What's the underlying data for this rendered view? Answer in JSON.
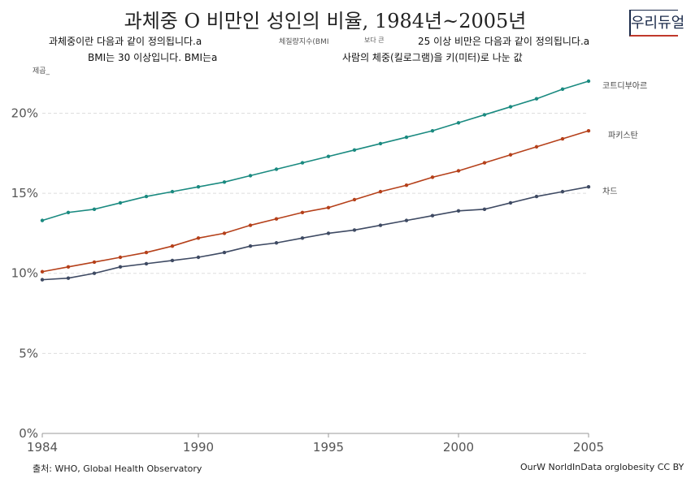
{
  "header": {
    "title": "과체중 O 비만인 성인의 비율, 1984년~2005년",
    "subtitle_1a": "과체중이란 다음과 같이 정의됩니다.a",
    "subtitle_1b": "체질량지수(BMI",
    "subtitle_1c": "보다 큰",
    "subtitle_1d": "25 이상 비만은 다음과 같이 정의됩니다.a",
    "subtitle_2a": "BMI는 30 이상입니다. BMI는a",
    "subtitle_2b": "사람의 체중(킬로그램)을 키(미터)로 나눈 값",
    "subtitle_3": "제곱_"
  },
  "logo": {
    "text": "우리듀얼"
  },
  "footer": {
    "source": "출처: WHO, Global Health Observatory",
    "credit": "OurW NorldInData orglobesity CC BY"
  },
  "chart_data": {
    "type": "line",
    "x": [
      1984,
      1985,
      1986,
      1987,
      1988,
      1989,
      1990,
      1991,
      1992,
      1993,
      1994,
      1995,
      1996,
      1997,
      1998,
      1999,
      2000,
      2001,
      2002,
      2003,
      2004,
      2005
    ],
    "x_ticks": [
      1984,
      1990,
      1995,
      2000,
      2005
    ],
    "y_ticks": [
      0,
      5,
      10,
      15,
      20
    ],
    "y_tick_labels": [
      "0%",
      "5%",
      "10%",
      "15%",
      "20%"
    ],
    "xlim": [
      1984,
      2005
    ],
    "ylim": [
      0,
      22
    ],
    "grid": "horizontal dashed",
    "legend_placement": "right, line-end labels",
    "series": [
      {
        "name": "코트디부아르",
        "color": "#1a8a80",
        "values": [
          13.3,
          13.8,
          14.0,
          14.4,
          14.8,
          15.1,
          15.4,
          15.7,
          16.1,
          16.5,
          16.9,
          17.3,
          17.7,
          18.1,
          18.5,
          18.9,
          19.4,
          19.9,
          20.4,
          20.9,
          21.5,
          22.0
        ]
      },
      {
        "name": "파키스탄",
        "color": "#b5401a",
        "values": [
          10.1,
          10.4,
          10.7,
          11.0,
          11.3,
          11.7,
          12.2,
          12.5,
          13.0,
          13.4,
          13.8,
          14.1,
          14.6,
          15.1,
          15.5,
          16.0,
          16.4,
          16.9,
          17.4,
          17.9,
          18.4,
          18.9
        ]
      },
      {
        "name": "차드",
        "color": "#3e4a63",
        "values": [
          9.6,
          9.7,
          10.0,
          10.4,
          10.6,
          10.8,
          11.0,
          11.3,
          11.7,
          11.9,
          12.2,
          12.5,
          12.7,
          13.0,
          13.3,
          13.6,
          13.9,
          14.0,
          14.4,
          14.8,
          15.1,
          15.4
        ]
      }
    ]
  }
}
